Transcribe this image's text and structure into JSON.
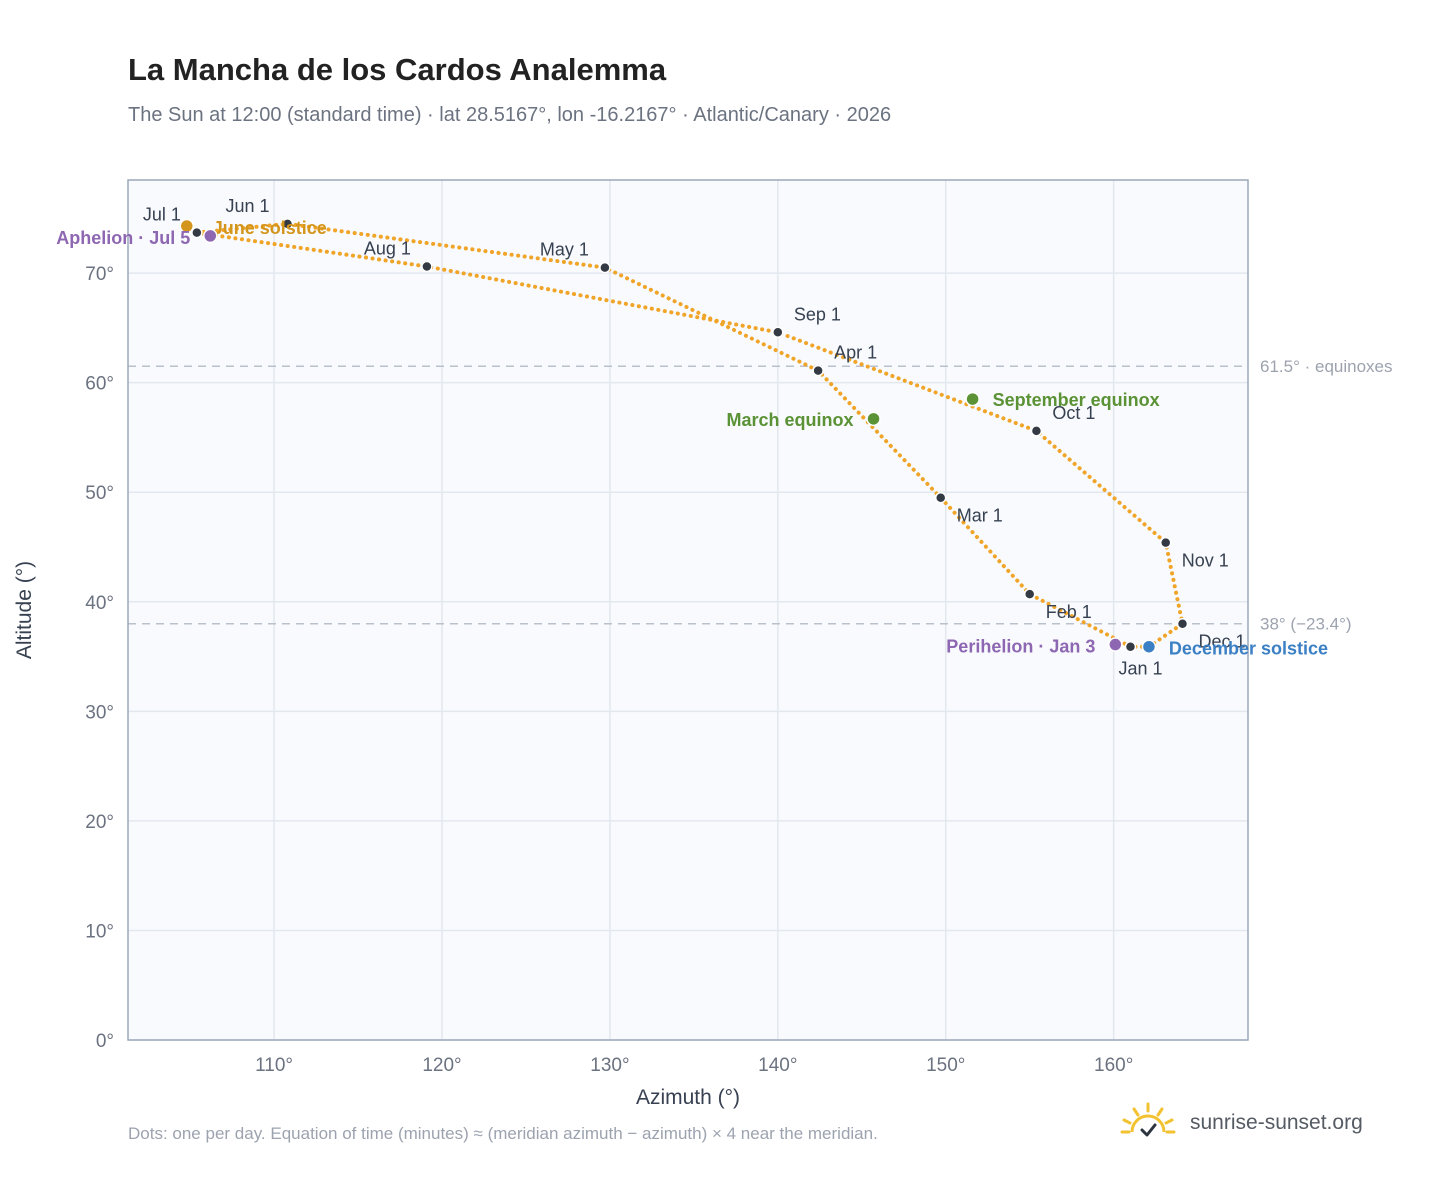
{
  "title": "La Mancha de los Cardos Analemma",
  "subtitle": "The Sun at 12:00 (standard time) · lat 28.5167°, lon -16.2167° · Atlantic/Canary · 2026",
  "footnote": "Dots: one per day. Equation of time (minutes) ≈ (meridian azimuth − azimuth) × 4 near the meridian.",
  "brand": {
    "name": "sunrise-sunset.org",
    "icon": "sun-logo-icon"
  },
  "colors": {
    "curve": "#f0a428",
    "plot_background": "#f8fafd",
    "grid": "#e3e8ef",
    "marker": "#333a44",
    "solstice_june": "#d4951c",
    "solstice_december": "#3b7fc4",
    "equinox": "#5a9235",
    "apsis": "#8e67b2",
    "reference_line": "#b9c1cc"
  },
  "chart_data": {
    "type": "scatter",
    "xlabel": "Azimuth (°)",
    "ylabel": "Altitude (°)",
    "xlim": [
      101.3,
      168
    ],
    "ylim": [
      0,
      78.5
    ],
    "x_ticks": [
      110,
      120,
      130,
      140,
      150,
      160
    ],
    "x_tick_labels": [
      "110°",
      "120°",
      "130°",
      "140°",
      "150°",
      "160°"
    ],
    "y_ticks": [
      0,
      10,
      20,
      30,
      40,
      50,
      60,
      70
    ],
    "y_tick_labels": [
      "0°",
      "10°",
      "20°",
      "30°",
      "40°",
      "50°",
      "60°",
      "70°"
    ],
    "grid": true,
    "reference_lines": [
      {
        "y": 61.5,
        "label": "61.5° · equinoxes"
      },
      {
        "y": 38.0,
        "label": "38° (−23.4°)"
      }
    ],
    "month_markers": [
      {
        "label": "Jan 1",
        "x": 161.0,
        "y": 35.9
      },
      {
        "label": "Feb 1",
        "x": 155.0,
        "y": 40.7
      },
      {
        "label": "Mar 1",
        "x": 149.7,
        "y": 49.5
      },
      {
        "label": "Apr 1",
        "x": 142.4,
        "y": 61.1
      },
      {
        "label": "May 1",
        "x": 129.7,
        "y": 70.5
      },
      {
        "label": "Jun 1",
        "x": 110.8,
        "y": 74.5
      },
      {
        "label": "Jul 1",
        "x": 105.4,
        "y": 73.7
      },
      {
        "label": "Aug 1",
        "x": 119.1,
        "y": 70.6
      },
      {
        "label": "Sep 1",
        "x": 140.0,
        "y": 64.6
      },
      {
        "label": "Oct 1",
        "x": 155.4,
        "y": 55.6
      },
      {
        "label": "Nov 1",
        "x": 163.1,
        "y": 45.4
      },
      {
        "label": "Dec 1",
        "x": 164.1,
        "y": 38.0
      }
    ],
    "events": [
      {
        "label": "June solstice",
        "x": 104.8,
        "y": 74.3,
        "color_key": "solstice_june"
      },
      {
        "label": "December solstice",
        "x": 162.1,
        "y": 35.9,
        "color_key": "solstice_december"
      },
      {
        "label": "March equinox",
        "x": 145.7,
        "y": 56.7,
        "color_key": "equinox"
      },
      {
        "label": "September equinox",
        "x": 151.6,
        "y": 58.5,
        "color_key": "equinox"
      },
      {
        "label": "Aphelion · Jul 5",
        "x": 106.2,
        "y": 73.4,
        "color_key": "apsis"
      },
      {
        "label": "Perihelion · Jan 3",
        "x": 160.1,
        "y": 36.1,
        "color_key": "apsis"
      }
    ]
  }
}
